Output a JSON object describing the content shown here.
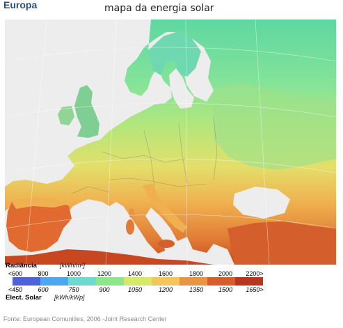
{
  "header": {
    "title": "Europa",
    "subtitle": "mapa da energia solar"
  },
  "legend": {
    "top_label": "Radiância",
    "top_unit": "[kWh/m²]",
    "top_ticks": [
      "<600",
      "800",
      "1000",
      "1200",
      "1400",
      "1600",
      "1800",
      "2000",
      "2200>"
    ],
    "bottom_ticks": [
      "<450",
      "600",
      "750",
      "900",
      "1050",
      "1200",
      "1350",
      "1500",
      "1650>"
    ],
    "bottom_label": "Elect. Solar",
    "bottom_unit": "[kWh/kWp]",
    "colors": [
      "#4f63d9",
      "#4ea6ee",
      "#6fd8d0",
      "#8fe58a",
      "#d7e86a",
      "#f1c65a",
      "#e69546",
      "#d45f2c",
      "#b8351f"
    ]
  },
  "footer": {
    "source": "Fonte: European Comunities, 2006 -Joint Research Center"
  }
}
